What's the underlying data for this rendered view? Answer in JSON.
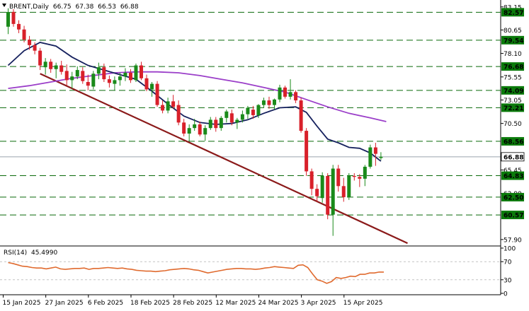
{
  "header": {
    "symbol": "BRENT",
    "timeframe": "Daily",
    "open": "66.75",
    "high": "67.38",
    "low": "66.53",
    "close": "66.88"
  },
  "rsi": {
    "label": "RSI(14)",
    "value": "45.4990",
    "levels": [
      70,
      30
    ],
    "scale_labels": [
      "100",
      "70",
      "30",
      "0"
    ],
    "values": [
      68,
      66,
      63,
      60,
      59,
      57,
      56,
      56,
      54,
      56,
      58,
      54,
      53,
      54,
      55,
      55,
      56,
      53,
      55,
      55,
      56,
      57,
      56,
      55,
      56,
      54,
      53,
      51,
      50,
      49,
      49,
      48,
      49,
      50,
      52,
      53,
      54,
      55,
      54,
      52,
      51,
      48,
      45,
      47,
      49,
      51,
      53,
      54,
      55,
      55,
      54,
      54,
      53,
      54,
      56,
      57,
      59,
      58,
      57,
      56,
      55,
      62,
      63,
      57,
      43,
      30,
      27,
      22,
      26,
      35,
      33,
      35,
      38,
      37,
      42,
      42,
      45,
      45,
      47,
      47
    ]
  },
  "price_scale": {
    "labels": [
      "83.15",
      "80.65",
      "78.10",
      "75.55",
      "73.05",
      "70.50",
      "65.45",
      "62.90",
      "57.90"
    ]
  },
  "levels": [
    {
      "value": 82.57,
      "label": "82.57"
    },
    {
      "value": 79.54,
      "label": "79.54"
    },
    {
      "value": 76.68,
      "label": "76.68"
    },
    {
      "value": 74.09,
      "label": "74.09"
    },
    {
      "value": 72.21,
      "label": "72.21"
    },
    {
      "value": 68.56,
      "label": "68.56"
    },
    {
      "value": 64.83,
      "label": "64.83"
    },
    {
      "value": 62.5,
      "label": "62.50"
    },
    {
      "value": 60.57,
      "label": "60.57"
    }
  ],
  "current_price": {
    "value": 66.88,
    "label": "66.88"
  },
  "chart_data": {
    "type": "candlestick",
    "x_labels": [
      "15 Jan 2025",
      "27 Jan 2025",
      "6 Feb 2025",
      "18 Feb 2025",
      "28 Feb 2025",
      "12 Mar 2025",
      "24 Mar 2025",
      "3 Apr 2025",
      "15 Apr 2025"
    ],
    "x_label_index": [
      0,
      8,
      16,
      24,
      32,
      40,
      48,
      56,
      64
    ],
    "ylim": [
      57.2,
      83.9
    ],
    "candles": [
      [
        81.0,
        83.0,
        80.2,
        82.6
      ],
      [
        82.6,
        82.9,
        81.0,
        81.3
      ],
      [
        81.3,
        81.7,
        80.3,
        80.7
      ],
      [
        80.7,
        81.1,
        79.3,
        79.6
      ],
      [
        79.6,
        80.0,
        78.5,
        79.0
      ],
      [
        79.0,
        79.3,
        78.0,
        78.4
      ],
      [
        78.4,
        78.7,
        76.3,
        76.8
      ],
      [
        76.6,
        77.6,
        75.8,
        77.2
      ],
      [
        77.2,
        77.5,
        76.0,
        76.4
      ],
      [
        76.4,
        77.1,
        75.4,
        76.8
      ],
      [
        76.8,
        77.3,
        75.8,
        76.1
      ],
      [
        76.2,
        76.9,
        74.6,
        75.2
      ],
      [
        75.2,
        76.1,
        74.3,
        75.6
      ],
      [
        75.6,
        76.7,
        75.3,
        76.3
      ],
      [
        76.2,
        76.6,
        74.8,
        75.1
      ],
      [
        75.0,
        75.8,
        74.1,
        74.6
      ],
      [
        74.5,
        76.2,
        74.2,
        75.9
      ],
      [
        75.9,
        77.1,
        75.3,
        76.6
      ],
      [
        76.6,
        77.0,
        75.0,
        75.3
      ],
      [
        75.3,
        75.7,
        74.4,
        74.9
      ],
      [
        74.8,
        75.6,
        74.1,
        75.2
      ],
      [
        75.2,
        76.0,
        74.6,
        75.6
      ],
      [
        75.6,
        76.5,
        75.1,
        76.0
      ],
      [
        76.0,
        76.4,
        74.9,
        75.2
      ],
      [
        75.2,
        77.0,
        75.0,
        76.8
      ],
      [
        76.8,
        77.2,
        75.2,
        75.4
      ],
      [
        75.4,
        75.8,
        74.0,
        74.2
      ],
      [
        74.2,
        75.0,
        73.4,
        74.8
      ],
      [
        74.8,
        75.1,
        72.3,
        72.5
      ],
      [
        72.5,
        73.0,
        71.6,
        71.9
      ],
      [
        71.9,
        73.3,
        71.6,
        72.9
      ],
      [
        72.9,
        73.6,
        72.1,
        72.3
      ],
      [
        72.5,
        73.0,
        70.3,
        70.6
      ],
      [
        70.6,
        71.0,
        69.1,
        69.4
      ],
      [
        69.4,
        70.4,
        68.6,
        70.0
      ],
      [
        70.0,
        71.0,
        69.7,
        70.4
      ],
      [
        70.4,
        70.7,
        69.1,
        69.3
      ],
      [
        69.3,
        70.3,
        68.6,
        70.0
      ],
      [
        70.0,
        71.2,
        69.8,
        70.9
      ],
      [
        70.9,
        71.2,
        69.6,
        70.0
      ],
      [
        70.0,
        71.3,
        69.7,
        71.1
      ],
      [
        71.1,
        72.0,
        70.6,
        71.8
      ],
      [
        71.6,
        72.0,
        70.3,
        70.6
      ],
      [
        70.6,
        71.1,
        69.9,
        70.9
      ],
      [
        70.9,
        71.9,
        70.6,
        71.5
      ],
      [
        71.5,
        72.4,
        71.0,
        72.2
      ],
      [
        72.0,
        72.4,
        71.0,
        71.4
      ],
      [
        71.4,
        72.6,
        71.1,
        72.5
      ],
      [
        72.5,
        73.3,
        72.2,
        73.0
      ],
      [
        73.0,
        73.4,
        72.1,
        72.5
      ],
      [
        72.5,
        73.2,
        72.0,
        73.1
      ],
      [
        73.1,
        74.7,
        72.8,
        74.4
      ],
      [
        74.4,
        74.6,
        73.2,
        73.4
      ],
      [
        73.4,
        75.3,
        73.1,
        73.9
      ],
      [
        73.9,
        74.1,
        72.7,
        73.0
      ],
      [
        73.0,
        73.3,
        69.5,
        69.7
      ],
      [
        69.7,
        70.0,
        64.8,
        65.3
      ],
      [
        65.3,
        65.6,
        62.7,
        63.4
      ],
      [
        63.4,
        63.9,
        62.0,
        62.6
      ],
      [
        62.4,
        65.2,
        61.9,
        64.8
      ],
      [
        64.8,
        65.1,
        60.1,
        60.6
      ],
      [
        60.6,
        66.0,
        58.3,
        65.6
      ],
      [
        65.6,
        66.0,
        63.1,
        63.7
      ],
      [
        63.7,
        64.6,
        62.0,
        62.5
      ],
      [
        62.5,
        65.1,
        62.2,
        64.8
      ],
      [
        64.8,
        65.1,
        64.3,
        64.7
      ],
      [
        64.7,
        65.0,
        63.6,
        64.5
      ],
      [
        64.5,
        66.0,
        63.7,
        65.8
      ],
      [
        65.8,
        68.2,
        65.6,
        67.9
      ],
      [
        67.9,
        68.4,
        65.9,
        67.2
      ],
      [
        66.75,
        67.38,
        66.53,
        66.88
      ]
    ],
    "ma_fast": [
      [
        0,
        76.8
      ],
      [
        3,
        78.4
      ],
      [
        6,
        79.3
      ],
      [
        9,
        78.9
      ],
      [
        12,
        77.7
      ],
      [
        15,
        76.8
      ],
      [
        18,
        76.3
      ],
      [
        21,
        75.8
      ],
      [
        24,
        75.3
      ],
      [
        27,
        74.0
      ],
      [
        30,
        72.6
      ],
      [
        33,
        71.3
      ],
      [
        36,
        70.6
      ],
      [
        39,
        70.4
      ],
      [
        42,
        70.5
      ],
      [
        45,
        70.9
      ],
      [
        48,
        71.6
      ],
      [
        51,
        72.2
      ],
      [
        54,
        72.3
      ],
      [
        56,
        71.7
      ],
      [
        58,
        70.2
      ],
      [
        60,
        68.8
      ],
      [
        62,
        68.4
      ],
      [
        64,
        67.9
      ],
      [
        66,
        67.8
      ],
      [
        68,
        67.3
      ],
      [
        70,
        66.4
      ]
    ],
    "ma_slow": [
      [
        0,
        74.3
      ],
      [
        4,
        74.6
      ],
      [
        8,
        75.0
      ],
      [
        12,
        75.4
      ],
      [
        16,
        75.7
      ],
      [
        20,
        76.0
      ],
      [
        24,
        76.1
      ],
      [
        28,
        76.1
      ],
      [
        32,
        76.0
      ],
      [
        36,
        75.7
      ],
      [
        40,
        75.3
      ],
      [
        44,
        74.9
      ],
      [
        48,
        74.4
      ],
      [
        52,
        73.9
      ],
      [
        56,
        73.1
      ],
      [
        60,
        72.3
      ],
      [
        64,
        71.6
      ],
      [
        68,
        71.1
      ],
      [
        71,
        70.7
      ]
    ],
    "trendline": [
      [
        6,
        75.9
      ],
      [
        75,
        57.5
      ]
    ]
  }
}
